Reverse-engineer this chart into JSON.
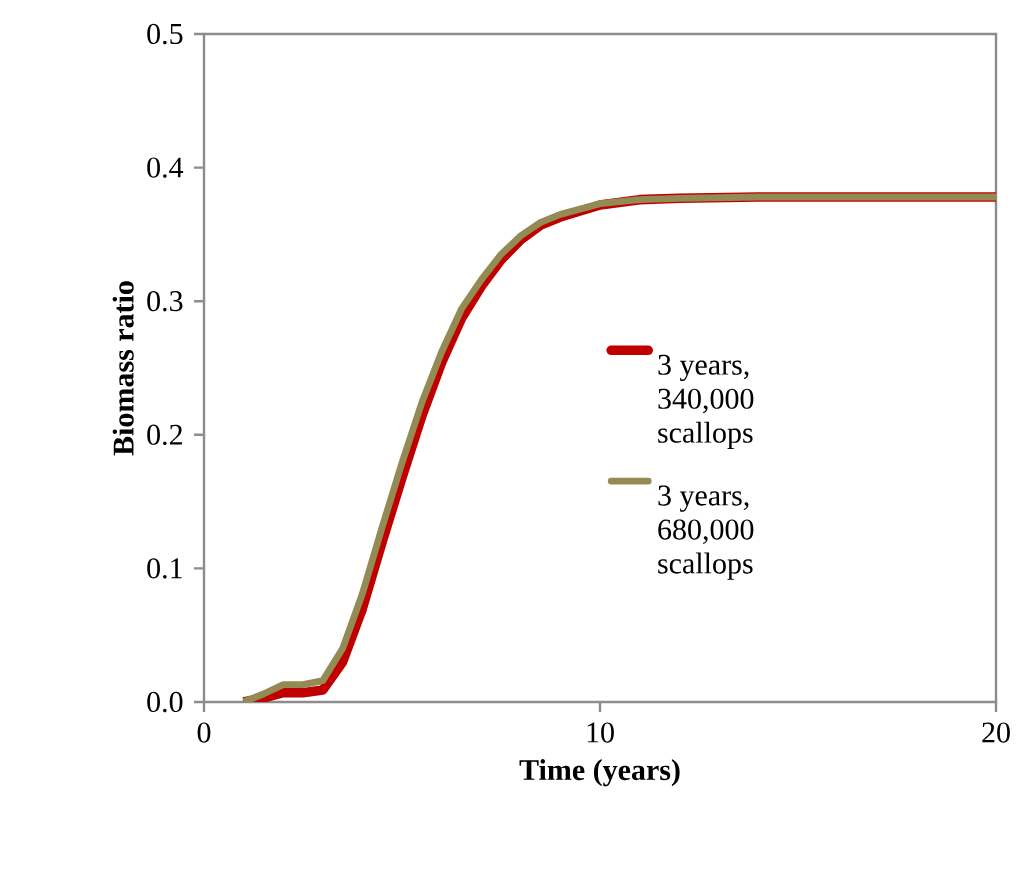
{
  "chart_data": {
    "type": "line",
    "xlabel": "Time (years)",
    "ylabel": "Biomass ratio",
    "x": [
      1,
      1.5,
      2,
      2.5,
      3,
      3.5,
      4,
      4.5,
      5,
      5.5,
      6,
      6.5,
      7,
      7.5,
      8,
      8.5,
      9,
      10,
      11,
      12,
      14,
      16,
      18,
      20
    ],
    "series": [
      {
        "name": "3 years, 340,000 scallops",
        "color": "#c00000",
        "values": [
          0,
          0.003,
          0.007,
          0.007,
          0.009,
          0.03,
          0.07,
          0.12,
          0.168,
          0.214,
          0.254,
          0.287,
          0.311,
          0.331,
          0.346,
          0.357,
          0.363,
          0.372,
          0.376,
          0.377,
          0.378,
          0.378,
          0.378,
          0.378
        ]
      },
      {
        "name": "3 years, 680,000 scallops",
        "color": "#948a54",
        "values": [
          0,
          0.006,
          0.013,
          0.013,
          0.016,
          0.04,
          0.081,
          0.131,
          0.179,
          0.224,
          0.262,
          0.294,
          0.316,
          0.335,
          0.349,
          0.359,
          0.365,
          0.373,
          0.376,
          0.377,
          0.378,
          0.378,
          0.378,
          0.378
        ]
      }
    ],
    "xlim": [
      0,
      20
    ],
    "ylim": [
      0,
      0.5
    ],
    "xticks": [
      0,
      10,
      20
    ],
    "yticks": [
      {
        "value": 0,
        "label": "0.0"
      },
      {
        "value": 0.1,
        "label": "0.1"
      },
      {
        "value": 0.2,
        "label": "0.2"
      },
      {
        "value": 0.3,
        "label": "0.3"
      },
      {
        "value": 0.4,
        "label": "0.4"
      },
      {
        "value": 0.5,
        "label": "0.5"
      }
    ],
    "grid": false,
    "legend": "right",
    "line_style": "solid"
  }
}
